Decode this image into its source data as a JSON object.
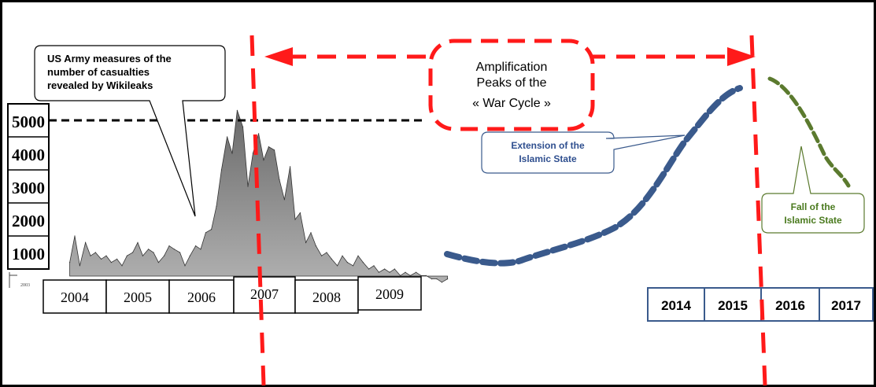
{
  "chart_data": {
    "type": "area",
    "y_ticks": [
      "5000",
      "4000",
      "3000",
      "2000",
      "1000"
    ],
    "x_ticks": [
      "2004",
      "2005",
      "2006",
      "2007",
      "2008",
      "2009"
    ],
    "x_ticks_future": [
      "2014",
      "2015",
      "2016",
      "2017"
    ],
    "ylim": [
      0,
      5500
    ],
    "reference_line": 5000,
    "casualties_series": {
      "x": [
        2003.92,
        2004.0,
        2004.08,
        2004.17,
        2004.25,
        2004.33,
        2004.42,
        2004.5,
        2004.58,
        2004.67,
        2004.75,
        2004.83,
        2004.92,
        2005.0,
        2005.08,
        2005.17,
        2005.25,
        2005.33,
        2005.42,
        2005.5,
        2005.58,
        2005.67,
        2005.75,
        2005.83,
        2005.92,
        2006.0,
        2006.08,
        2006.17,
        2006.25,
        2006.33,
        2006.42,
        2006.5,
        2006.58,
        2006.67,
        2006.75,
        2006.83,
        2006.92,
        2007.0,
        2007.08,
        2007.17,
        2007.25,
        2007.33,
        2007.42,
        2007.5,
        2007.58,
        2007.67,
        2007.75,
        2007.83,
        2007.92,
        2008.0,
        2008.08,
        2008.17,
        2008.25,
        2008.33,
        2008.42,
        2008.5,
        2008.58,
        2008.67,
        2008.75,
        2008.83,
        2008.92,
        2009.0,
        2009.08,
        2009.17,
        2009.25,
        2009.33,
        2009.42,
        2009.5,
        2009.58,
        2009.67,
        2009.75,
        2009.83,
        2009.92
      ],
      "values": [
        700,
        1500,
        600,
        1300,
        900,
        1000,
        800,
        900,
        700,
        800,
        600,
        900,
        1000,
        1300,
        900,
        1100,
        1000,
        700,
        900,
        1200,
        1100,
        1000,
        600,
        900,
        1200,
        1100,
        1600,
        1700,
        2400,
        3500,
        4500,
        4000,
        5300,
        4800,
        3000,
        4000,
        4600,
        3800,
        4200,
        4100,
        3200,
        2600,
        3600,
        2000,
        2200,
        1300,
        1600,
        1200,
        900,
        1000,
        800,
        600,
        900,
        700,
        600,
        900,
        700,
        500,
        600,
        400,
        500,
        400,
        500,
        300,
        400,
        300,
        400,
        300,
        300,
        200,
        200,
        100,
        200
      ]
    }
  },
  "annotations": {
    "wikileaks_callout": "US Army measures of the number of casualties revealed by Wikileaks",
    "war_cycle_box": "Amplification Peaks of the « War Cycle »",
    "extension_label": "Extension of the Islamic State",
    "fall_label": "Fall of the Islamic State"
  },
  "small_tick": "2003",
  "colors": {
    "red_dash": "#ff1a1a",
    "blue_curve": "#3a5a8c",
    "green_curve": "#5b7a2e",
    "area_fill": "#8e8e8e",
    "callout_text_blue": "#2f4f8f",
    "callout_text_green": "#4a7a1e"
  }
}
